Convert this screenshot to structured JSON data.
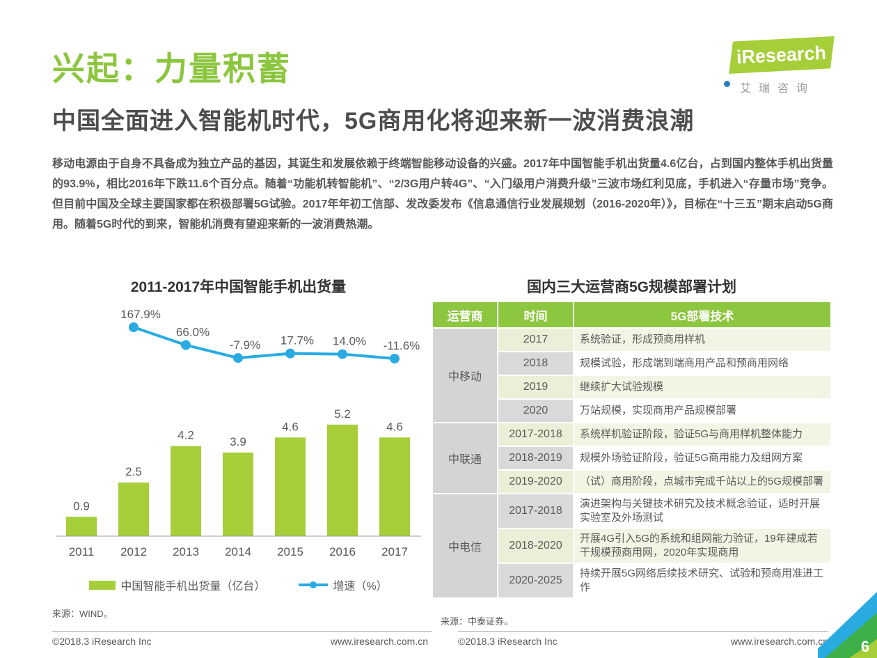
{
  "colors": {
    "title_green": "#8cc63f",
    "bar_green": "#a5ce39",
    "line_blue": "#29abe2",
    "header_green": "#8dc63f",
    "corner_dark_green": "#3eb049",
    "text_dark": "#595959"
  },
  "header": {
    "title": "兴起：力量积蓄",
    "subtitle": "中国全面进入智能机时代，5G商用化将迎来新一波消费浪潮",
    "paragraph": "移动电源由于自身不具备成为独立产品的基因，其诞生和发展依赖于终端智能移动设备的兴盛。2017年中国智能手机出货量4.6亿台，占到国内整体手机出货量的93.9%，相比2016年下跌11.6个百分点。随着“功能机转智能机”、“2/3G用户转4G”、“入门级用户消费升级”三波市场红利见底，手机进入“存量市场”竞争。但目前中国及全球主要国家都在积极部署5G试验。2017年年初工信部、发改委发布《信息通信行业发展规划（2016-2020年）》，目标在“十三五”期末启动5G商用。随着5G时代的到来，智能机消费有望迎来新的一波消费热潮。"
  },
  "logo": {
    "i": "i",
    "brand": "iResearch",
    "caption": "艾瑞咨询"
  },
  "chart_data": {
    "type": "bar",
    "title": "2011-2017年中国智能手机出货量",
    "categories": [
      "2011",
      "2012",
      "2013",
      "2014",
      "2015",
      "2016",
      "2017"
    ],
    "series": [
      {
        "name": "中国智能手机出货量（亿台）",
        "type": "bar",
        "values": [
          0.9,
          2.5,
          4.2,
          3.9,
          4.6,
          5.2,
          4.6
        ],
        "labels": [
          "0.9",
          "2.5",
          "4.2",
          "3.9",
          "4.6",
          "5.2",
          "4.6"
        ]
      },
      {
        "name": "增速（%）",
        "type": "line",
        "values": [
          null,
          167.9,
          66.0,
          -7.9,
          17.7,
          14.0,
          -11.6
        ],
        "labels": [
          "167.9%",
          "66.0%",
          "-7.9%",
          "17.7%",
          "14.0%",
          "-11.6%"
        ]
      }
    ],
    "ylim": [
      0,
      6
    ],
    "grid": false,
    "legend_position": "bottom",
    "source": "来源：WIND。"
  },
  "table": {
    "title": "国内三大运营商5G规模部署计划",
    "headers": [
      "运营商",
      "时间",
      "5G部署技术"
    ],
    "groups": [
      {
        "operator": "中移动",
        "rows": [
          {
            "time": "2017",
            "tech": "系统验证，形成预商用样机"
          },
          {
            "time": "2018",
            "tech": "规模试验，形成端到端商用产品和预商用网络"
          },
          {
            "time": "2019",
            "tech": "继续扩大试验规模"
          },
          {
            "time": "2020",
            "tech": "万站规模，实现商用产品规模部署"
          }
        ]
      },
      {
        "operator": "中联通",
        "rows": [
          {
            "time": "2017-2018",
            "tech": "系统样机验证阶段，验证5G与商用样机整体能力"
          },
          {
            "time": "2018-2019",
            "tech": "规模外场验证阶段，验证5G商用能力及组网方案"
          },
          {
            "time": "2019-2020",
            "tech": "（试）商用阶段，点城市完成千站以上的5G规模部署"
          }
        ]
      },
      {
        "operator": "中电信",
        "rows": [
          {
            "time": "2017-2018",
            "tech": "演进架构与关键技术研究及技术概念验证，适时开展实验室及外场测试"
          },
          {
            "time": "2018-2020",
            "tech": "开展4G引入5G的系统和组网能力验证，19年建成若干规模预商用网，2020年实现商用"
          },
          {
            "time": "2020-2025",
            "tech": "持续开展5G网络后续技术研究、试验和预商用准进工作"
          }
        ]
      }
    ],
    "source": "来源：中泰证券。"
  },
  "footer": {
    "left_copyright": "©2018.3 iResearch Inc",
    "left_url": "www.iresearch.com.cn",
    "right_copyright": "©2018.3 iResearch Inc",
    "right_url": "www.iresearch.com.cn",
    "page_number": "6"
  }
}
